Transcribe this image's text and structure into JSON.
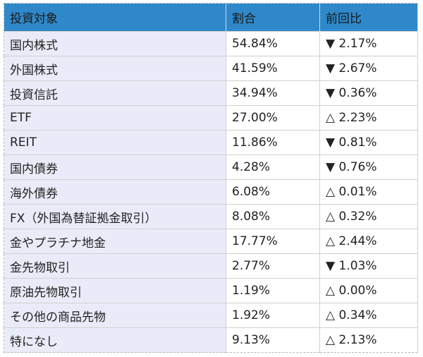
{
  "header": {
    "col1": "投資対象",
    "col2": "割合",
    "col3": "前回比"
  },
  "colors": {
    "header_bg": "#2f88c9",
    "first_col_bg": "#e9ecf8"
  },
  "rows": [
    {
      "name": "国内株式",
      "ratio": "54.84%",
      "change": "▼ 2.17%"
    },
    {
      "name": "外国株式",
      "ratio": "41.59%",
      "change": "▼ 2.67%"
    },
    {
      "name": "投資信託",
      "ratio": "34.94%",
      "change": "▼ 0.36%"
    },
    {
      "name": "ETF",
      "ratio": "27.00%",
      "change": "△ 2.23%"
    },
    {
      "name": "REIT",
      "ratio": "11.86%",
      "change": "▼ 0.81%"
    },
    {
      "name": "国内債券",
      "ratio": "4.28%",
      "change": "▼ 0.76%"
    },
    {
      "name": "海外債券",
      "ratio": "6.08%",
      "change": "△ 0.01%"
    },
    {
      "name": "FX（外国為替証拠金取引）",
      "ratio": "8.08%",
      "change": "△ 0.32%"
    },
    {
      "name": "金やプラチナ地金",
      "ratio": "17.77%",
      "change": "△ 2.44%"
    },
    {
      "name": "金先物取引",
      "ratio": "2.77%",
      "change": "▼ 1.03%"
    },
    {
      "name": "原油先物取引",
      "ratio": "1.19%",
      "change": "△ 0.00%"
    },
    {
      "name": "その他の商品先物",
      "ratio": "1.92%",
      "change": "△ 0.34%"
    },
    {
      "name": "特になし",
      "ratio": "9.13%",
      "change": "△ 2.13%"
    }
  ]
}
